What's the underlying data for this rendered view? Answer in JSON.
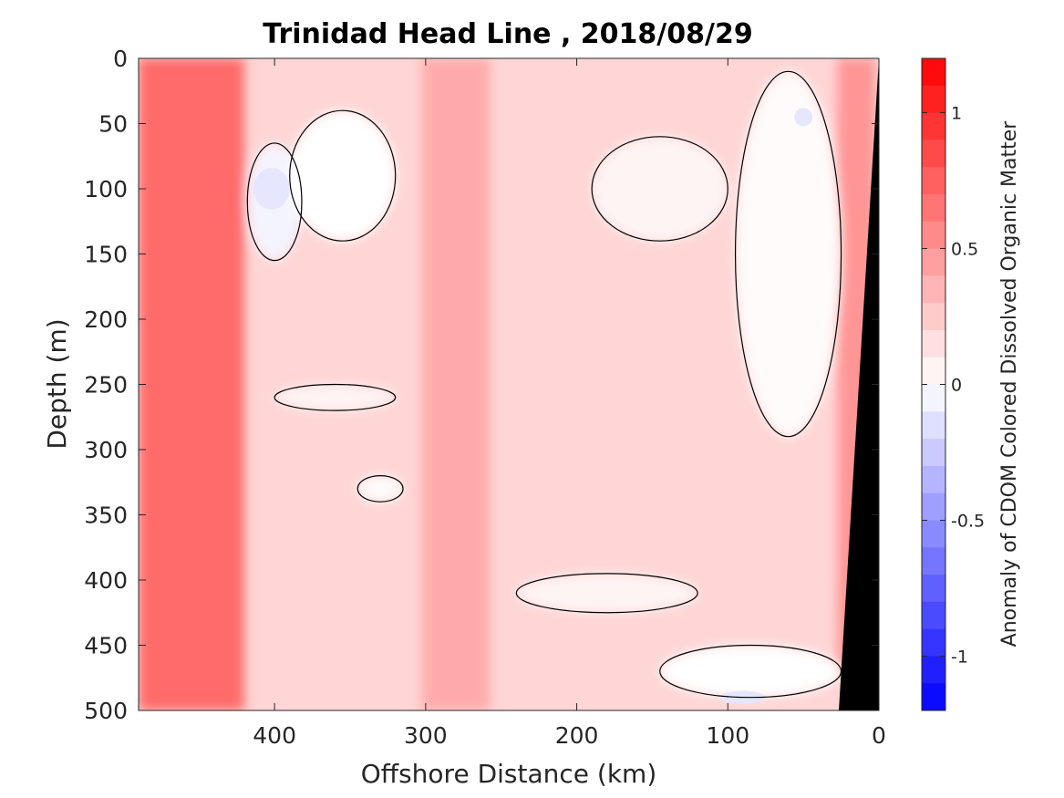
{
  "chart_data": {
    "type": "heatmap",
    "title": "Trinidad Head Line , 2018/08/29",
    "xlabel": "Offshore Distance (km)",
    "ylabel": "Depth (m)",
    "colorbar_label": "Anomaly of CDOM Colored Dissolved Organic Matter",
    "xlim": [
      490,
      0
    ],
    "ylim": [
      0,
      500
    ],
    "x_reversed": true,
    "y_reversed": true,
    "x_ticks": [
      400,
      300,
      200,
      100,
      0
    ],
    "x_tick_labels": [
      "400",
      "300",
      "200",
      "100",
      "0"
    ],
    "y_ticks": [
      0,
      50,
      100,
      150,
      200,
      250,
      300,
      350,
      400,
      450,
      500
    ],
    "y_tick_labels": [
      "0",
      "50",
      "100",
      "150",
      "200",
      "250",
      "300",
      "350",
      "400",
      "450",
      "500"
    ],
    "colorbar": {
      "range": [
        -1.2,
        1.2
      ],
      "ticks": [
        1,
        0.5,
        0,
        -0.5,
        -1
      ],
      "tick_labels": [
        "1",
        "0.5",
        "0",
        "-0.5",
        "-1"
      ],
      "levels": 24,
      "colormap": "blue-white-red",
      "high_color": "#ff0000",
      "low_color": "#0000ff",
      "zero_color": "#ffffff"
    },
    "bottom_mask_color": "#000000",
    "zero_contour_color": "#000000",
    "features": {
      "columns": [
        {
          "x_center": 455,
          "x_width": 70,
          "y_range": [
            0,
            500
          ],
          "anomaly": 0.7
        },
        {
          "x_center": 280,
          "x_width": 45,
          "y_range": [
            0,
            500
          ],
          "anomaly": 0.4
        },
        {
          "x_center": 15,
          "x_width": 25,
          "y_range": [
            0,
            470
          ],
          "anomaly": 0.5
        }
      ],
      "background_anomaly": 0.2,
      "white_patches": [
        {
          "x": 400,
          "y": 110,
          "rx": 18,
          "ry": 45,
          "anomaly": -0.05
        },
        {
          "x": 355,
          "y": 90,
          "rx": 35,
          "ry": 50,
          "anomaly": 0.0
        },
        {
          "x": 145,
          "y": 100,
          "rx": 45,
          "ry": 40,
          "anomaly": 0.05
        },
        {
          "x": 60,
          "y": 150,
          "rx": 35,
          "ry": 140,
          "anomaly": 0.02
        },
        {
          "x": 360,
          "y": 260,
          "rx": 40,
          "ry": 10,
          "anomaly": 0.05
        },
        {
          "x": 330,
          "y": 330,
          "rx": 15,
          "ry": 10,
          "anomaly": 0.02
        },
        {
          "x": 180,
          "y": 410,
          "rx": 60,
          "ry": 15,
          "anomaly": 0.05
        },
        {
          "x": 85,
          "y": 470,
          "rx": 60,
          "ry": 20,
          "anomaly": 0.0
        }
      ],
      "blue_patches": [
        {
          "x": 402,
          "y": 100,
          "rx": 12,
          "ry": 16,
          "anomaly": -0.12
        },
        {
          "x": 50,
          "y": 45,
          "rx": 6,
          "ry": 7,
          "anomaly": -0.12
        },
        {
          "x": 90,
          "y": 490,
          "rx": 15,
          "ry": 5,
          "anomaly": -0.12
        }
      ]
    }
  }
}
